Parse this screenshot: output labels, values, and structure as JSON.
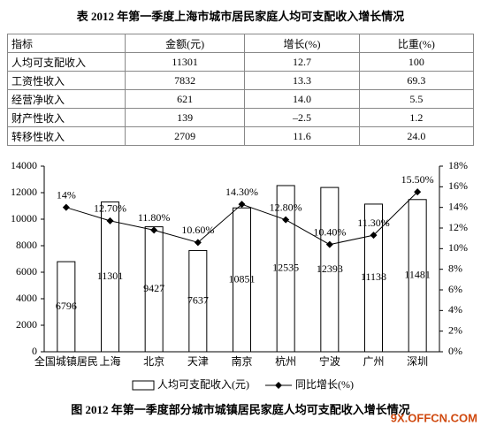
{
  "title": "表 2012 年第一季度上海市城市居民家庭人均可支配收入增长情况",
  "table": {
    "header": [
      "指标",
      "金额(元)",
      "增长(%)",
      "比重(%)"
    ],
    "rows": [
      [
        "人均可支配收入",
        "11301",
        "12.7",
        "100"
      ],
      [
        "工资性收入",
        "7832",
        "13.3",
        "69.3"
      ],
      [
        "经营净收入",
        "621",
        "14.0",
        "5.5"
      ],
      [
        "财产性收入",
        "139",
        "–2.5",
        "1.2"
      ],
      [
        "转移性收入",
        "2709",
        "11.6",
        "24.0"
      ]
    ]
  },
  "chart_data": {
    "type": "combo",
    "categories": [
      "全国城镇居民",
      "上海",
      "北京",
      "天津",
      "南京",
      "杭州",
      "宁波",
      "广州",
      "深圳"
    ],
    "series": [
      {
        "name": "人均可支配收入(元)",
        "type": "bar",
        "color": "#ffffff",
        "values": [
          6796,
          11301,
          9427,
          7637,
          10851,
          12535,
          12393,
          11138,
          11481
        ]
      },
      {
        "name": "同比增长(%)",
        "type": "line",
        "axis": "y2",
        "color": "#000000",
        "values": [
          14,
          12.7,
          11.8,
          10.6,
          14.3,
          12.8,
          10.4,
          11.3,
          15.5
        ],
        "value_labels": [
          "14%",
          "12.70%",
          "11.80%",
          "10.60%",
          "14.30%",
          "12.80%",
          "10.40%",
          "11.30%",
          "15.50%"
        ]
      }
    ],
    "ylim": [
      0,
      14000
    ],
    "yticks": [
      0,
      2000,
      4000,
      6000,
      8000,
      10000,
      12000,
      14000
    ],
    "y2lim": [
      0,
      18
    ],
    "y2ticks": [
      {
        "value": 0,
        "label": "0%"
      },
      {
        "value": 2,
        "label": "2%"
      },
      {
        "value": 4,
        "label": "4%"
      },
      {
        "value": 6,
        "label": "6%"
      },
      {
        "value": 8,
        "label": "8%"
      },
      {
        "value": 10,
        "label": "10%"
      },
      {
        "value": 12,
        "label": "12%"
      },
      {
        "value": 14,
        "label": "14%"
      },
      {
        "value": 16,
        "label": "16%"
      },
      {
        "value": 18,
        "label": "18%"
      }
    ]
  },
  "caption": "图 2012 年第一季度部分城市城镇居民家庭人均可支配收入增长情况",
  "watermark": "9X.OFFCN.COM"
}
